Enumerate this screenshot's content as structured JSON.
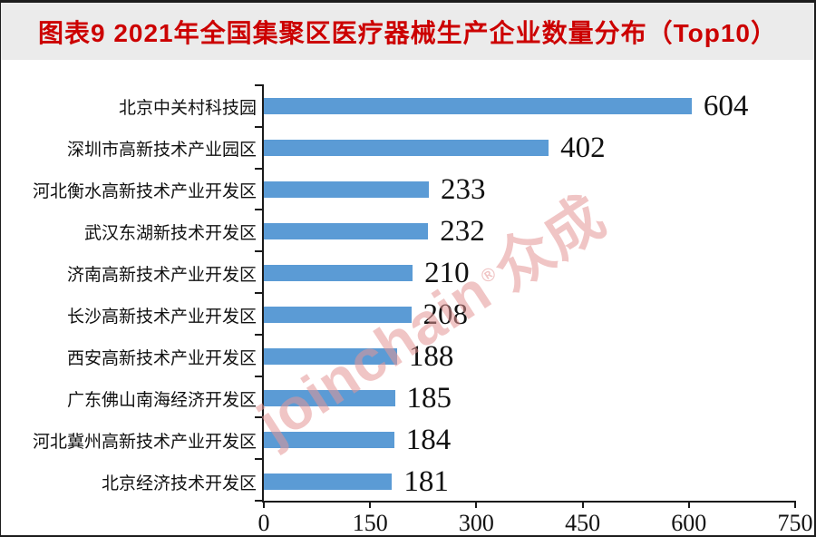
{
  "header": {
    "title": "图表9 2021年全国集聚区医疗器械生产企业数量分布（Top10）",
    "title_color": "#cc0000",
    "bar_bg": "#ebebeb"
  },
  "watermark": {
    "latin": "joinchain",
    "reg": "®",
    "cjk": "众成",
    "color": "#e79696"
  },
  "chart_data": {
    "type": "bar",
    "orientation": "horizontal",
    "title": "图表9 2021年全国集聚区医疗器械生产企业数量分布（Top10）",
    "categories": [
      "北京中关村科技园",
      "深圳市高新技术产业园区",
      "河北衡水高新技术产业开发区",
      "武汉东湖新技术开发区",
      "济南高新技术产业开发区",
      "长沙高新技术产业开发区",
      "西安高新技术产业开发区",
      "广东佛山南海经济开发区",
      "河北冀州高新技术产业开发区",
      "北京经济技术开发区"
    ],
    "values": [
      604,
      402,
      233,
      232,
      210,
      208,
      188,
      185,
      184,
      181
    ],
    "xlabel": "",
    "ylabel": "",
    "xlim": [
      0,
      750
    ],
    "xticks": [
      0,
      150,
      300,
      450,
      600,
      750
    ],
    "bar_color": "#5B9BD5",
    "grid": false,
    "legend": false,
    "value_labels": true
  }
}
